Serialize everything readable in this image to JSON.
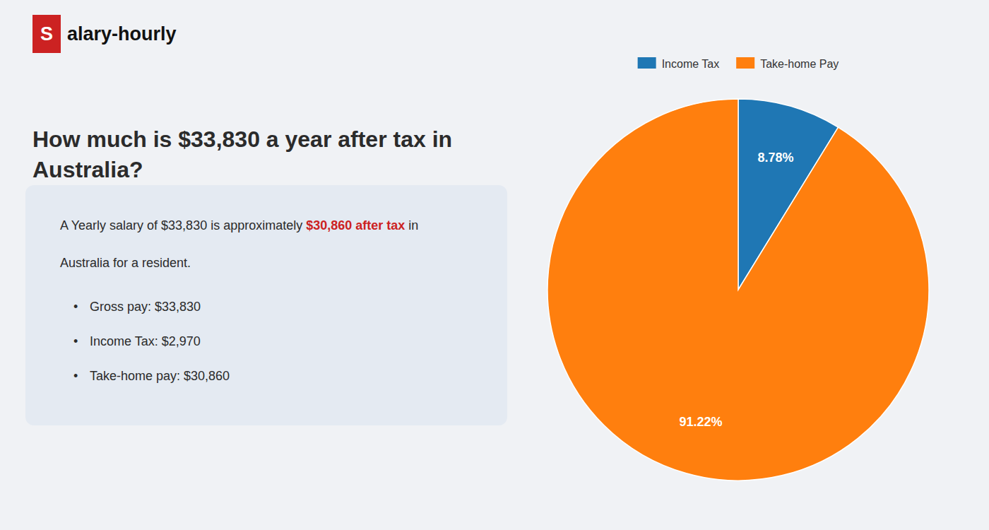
{
  "chart_data": {
    "type": "pie",
    "title": "How much is $33,830 a year after tax in\nAustralia?",
    "annotations": [
      "S",
      "alary-hourly",
      "A Yearly salary of $33,830 is approximately ",
      "$30,860 after tax",
      " in",
      "Australia for a resident.",
      "•",
      "Gross pay: $33,830",
      "Income Tax: $2,970",
      "Take-home pay: $30,860"
    ],
    "categories": [
      "Income Tax",
      "Take-home Pay"
    ],
    "values": [
      8.78,
      91.22
    ],
    "value_labels": [
      "8.78%",
      "91.22%"
    ],
    "data_labels": true,
    "legend": "top"
  }
}
